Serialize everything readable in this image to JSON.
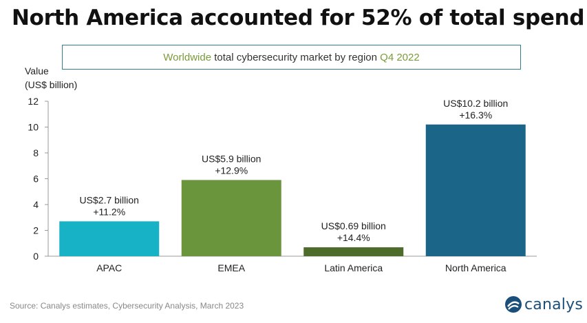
{
  "headline": "North America accounted for 52% of total spend",
  "subtitle": {
    "pre": "Worldwide",
    "main": " total cybersecurity market by region ",
    "post": "Q4 2022"
  },
  "source": "Source: Canalys estimates, Cybersecurity Analysis, March 2023",
  "logo": {
    "text": "canalys",
    "color": "#1b4f7a"
  },
  "chart_data": {
    "type": "bar",
    "ylabel_line1": "Value",
    "ylabel_line2": "(US$ billion)",
    "ylim": [
      0,
      12
    ],
    "yticks": [
      0,
      2,
      4,
      6,
      8,
      10,
      12
    ],
    "grid": false,
    "categories": [
      "APAC",
      "EMEA",
      "Latin America",
      "North America"
    ],
    "values": [
      2.7,
      5.9,
      0.69,
      10.2
    ],
    "value_labels": [
      "US$2.7 billion",
      "US$5.9 billion",
      "US$0.69 billion",
      "US$10.2 billion"
    ],
    "growth_labels": [
      "+11.2%",
      "+12.9%",
      "+14.4%",
      "+16.3%"
    ],
    "colors": [
      "#17b2c6",
      "#6b953c",
      "#4d6c2c",
      "#1b6589"
    ]
  }
}
